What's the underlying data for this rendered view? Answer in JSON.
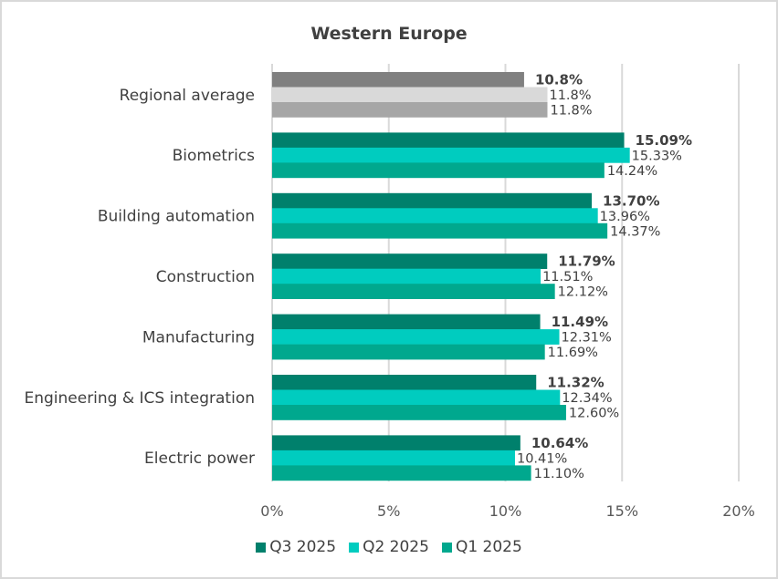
{
  "chart_data": {
    "type": "bar",
    "orientation": "horizontal",
    "title": "Western Europe",
    "xlabel": "",
    "ylabel": "",
    "xlim": [
      0,
      20
    ],
    "x_ticks": [
      0,
      5,
      10,
      15,
      20
    ],
    "x_tick_labels": [
      "0%",
      "5%",
      "10%",
      "15%",
      "20%"
    ],
    "grid": true,
    "legend_position": "bottom",
    "categories": [
      "Regional average",
      "Biometrics",
      "Building automation",
      "Construction",
      "Manufacturing",
      "Engineering & ICS integration",
      "Electric power"
    ],
    "series": [
      {
        "name": "Q3 2025",
        "color": "#00806c",
        "average_color": "#808080",
        "label_bold": true,
        "values": [
          10.8,
          15.09,
          13.7,
          11.79,
          11.49,
          11.32,
          10.64
        ],
        "labels": [
          "10.8%",
          "15.09%",
          "13.70%",
          "11.79%",
          "11.49%",
          "11.32%",
          "10.64%"
        ]
      },
      {
        "name": "Q2 2025",
        "color": "#00ccbf",
        "average_color": "#d9d9d9",
        "label_bold": false,
        "values": [
          11.8,
          15.33,
          13.96,
          11.51,
          12.31,
          12.34,
          10.41
        ],
        "labels": [
          "11.8%",
          "15.33%",
          "13.96%",
          "11.51%",
          "12.31%",
          "12.34%",
          "10.41%"
        ]
      },
      {
        "name": "Q1 2025",
        "color": "#00a88e",
        "average_color": "#a6a6a6",
        "label_bold": false,
        "values": [
          11.8,
          14.24,
          14.37,
          12.12,
          11.69,
          12.6,
          11.1
        ],
        "labels": [
          "11.8%",
          "14.24%",
          "14.37%",
          "12.12%",
          "11.69%",
          "12.60%",
          "11.10%"
        ]
      }
    ],
    "colors": {
      "gridline": "#d9d9d9",
      "text": "#404040"
    }
  }
}
